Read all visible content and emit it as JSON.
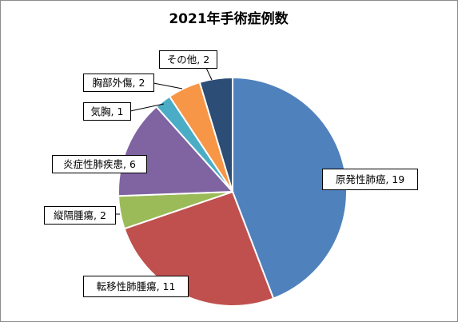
{
  "chart_data": {
    "type": "pie",
    "title": "2021年手術症例数",
    "slices": [
      {
        "category": "原発性肺癌",
        "value": 19,
        "label": "原発性肺癌, 19",
        "color": "#4f81bd"
      },
      {
        "category": "転移性肺腫瘍",
        "value": 11,
        "label": "転移性肺腫瘍, 11",
        "color": "#c0504d"
      },
      {
        "category": "縦隔腫瘍",
        "value": 2,
        "label": "縦隔腫瘍, 2",
        "color": "#9bbb59"
      },
      {
        "category": "炎症性肺疾患",
        "value": 6,
        "label": "炎症性肺疾患, 6",
        "color": "#8064a2"
      },
      {
        "category": "気胸",
        "value": 1,
        "label": "気胸, 1",
        "color": "#4bacc6"
      },
      {
        "category": "胸部外傷",
        "value": 2,
        "label": "胸部外傷, 2",
        "color": "#f79646"
      },
      {
        "category": "その他",
        "value": 2,
        "label": "その他, 2",
        "color": "#2c4d75"
      }
    ]
  }
}
